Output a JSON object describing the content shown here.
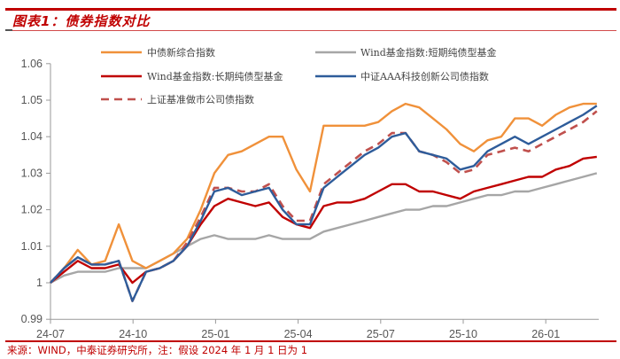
{
  "title": "图表1：债券指数对比",
  "source": "来源：WIND，中泰证券研究所，注：假设 2024 年 1 月 1 日为 1",
  "chart_data": {
    "type": "line",
    "title": "图表1：债券指数对比",
    "xlabel": "",
    "ylabel": "",
    "ylim": [
      0.99,
      1.06
    ],
    "yticks": [
      "1.06",
      "1.05",
      "1.04",
      "1.03",
      "1.02",
      "1.01",
      "1",
      "0.99"
    ],
    "xticks": [
      "24-07",
      "24-10",
      "25-01",
      "25-04",
      "25-07",
      "25-10",
      "26-01"
    ],
    "grid": false,
    "legend_position": "top",
    "x_step": "half-month",
    "x": [
      "24-07a",
      "24-07b",
      "24-08a",
      "24-08b",
      "24-09a",
      "24-09b",
      "24-10a",
      "24-10b",
      "24-11a",
      "24-11b",
      "24-12a",
      "24-12b",
      "25-01a",
      "25-01b",
      "25-02a",
      "25-02b",
      "25-03a",
      "25-03b",
      "25-04a",
      "25-04b",
      "25-05a",
      "25-05b",
      "25-06a",
      "25-06b",
      "25-07a",
      "25-07b",
      "25-08a",
      "25-08b",
      "25-09a",
      "25-09b",
      "25-10a",
      "25-10b",
      "25-11a",
      "25-11b",
      "25-12a",
      "25-12b",
      "26-01a",
      "26-01b",
      "26-02a",
      "26-02b",
      "26-03a"
    ],
    "series": [
      {
        "name": "中债新综合指数",
        "color": "#F0913A",
        "dash": false,
        "values": [
          1.0,
          1.004,
          1.009,
          1.005,
          1.006,
          1.016,
          1.006,
          1.004,
          1.006,
          1.008,
          1.012,
          1.02,
          1.03,
          1.035,
          1.036,
          1.038,
          1.04,
          1.04,
          1.031,
          1.025,
          1.043,
          1.043,
          1.043,
          1.043,
          1.044,
          1.047,
          1.049,
          1.048,
          1.045,
          1.042,
          1.038,
          1.036,
          1.039,
          1.04,
          1.045,
          1.045,
          1.043,
          1.046,
          1.048,
          1.049,
          1.049
        ]
      },
      {
        "name": "Wind基金指数:短期纯债型基金",
        "color": "#A6A6A6",
        "dash": false,
        "values": [
          1.0,
          1.002,
          1.003,
          1.003,
          1.003,
          1.004,
          1.004,
          1.004,
          1.006,
          1.008,
          1.01,
          1.012,
          1.013,
          1.012,
          1.012,
          1.012,
          1.013,
          1.012,
          1.012,
          1.012,
          1.014,
          1.015,
          1.016,
          1.017,
          1.018,
          1.019,
          1.02,
          1.02,
          1.021,
          1.021,
          1.022,
          1.023,
          1.024,
          1.024,
          1.025,
          1.025,
          1.026,
          1.027,
          1.028,
          1.029,
          1.03
        ]
      },
      {
        "name": "Wind基金指数:长期纯债型基金",
        "color": "#C00000",
        "dash": false,
        "values": [
          1.0,
          1.003,
          1.006,
          1.004,
          1.004,
          1.005,
          1.0,
          1.003,
          1.004,
          1.006,
          1.01,
          1.016,
          1.021,
          1.023,
          1.022,
          1.021,
          1.022,
          1.018,
          1.016,
          1.015,
          1.021,
          1.022,
          1.022,
          1.023,
          1.025,
          1.027,
          1.027,
          1.025,
          1.025,
          1.024,
          1.023,
          1.025,
          1.026,
          1.027,
          1.028,
          1.029,
          1.029,
          1.031,
          1.032,
          1.034,
          1.0345
        ]
      },
      {
        "name": "中证AAA科技创新公司债指数",
        "color": "#2E5C9A",
        "dash": false,
        "values": [
          1.0,
          1.004,
          1.007,
          1.005,
          1.005,
          1.006,
          0.995,
          1.003,
          1.004,
          1.006,
          1.01,
          1.017,
          1.025,
          1.026,
          1.024,
          1.025,
          1.026,
          1.02,
          1.016,
          1.016,
          1.026,
          1.029,
          1.032,
          1.035,
          1.037,
          1.04,
          1.041,
          1.036,
          1.035,
          1.034,
          1.031,
          1.032,
          1.036,
          1.038,
          1.04,
          1.038,
          1.04,
          1.042,
          1.044,
          1.046,
          1.0485
        ]
      },
      {
        "name": "上证基准做市公司债指数",
        "color": "#C0504D",
        "dash": true,
        "values": [
          1.0,
          1.004,
          1.007,
          1.005,
          1.005,
          1.006,
          0.995,
          1.003,
          1.004,
          1.006,
          1.011,
          1.018,
          1.026,
          1.026,
          1.025,
          1.025,
          1.027,
          1.021,
          1.017,
          1.017,
          1.027,
          1.03,
          1.033,
          1.036,
          1.038,
          1.041,
          1.041,
          1.036,
          1.035,
          1.033,
          1.03,
          1.031,
          1.035,
          1.036,
          1.037,
          1.036,
          1.038,
          1.04,
          1.042,
          1.044,
          1.047
        ]
      }
    ]
  },
  "legend": [
    {
      "label": "中债新综合指数"
    },
    {
      "label": "Wind基金指数:短期纯债型基金"
    },
    {
      "label": "Wind基金指数:长期纯债型基金"
    },
    {
      "label": "中证AAA科技创新公司债指数"
    },
    {
      "label": "上证基准做市公司债指数"
    }
  ]
}
